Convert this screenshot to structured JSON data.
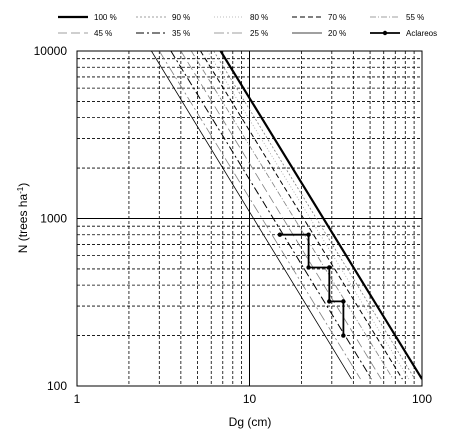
{
  "chart_data": {
    "type": "line",
    "title": "",
    "xlabel": "Dg (cm)",
    "ylabel_main": "N (trees ha",
    "ylabel_sup": "-1",
    "ylabel_close": ")",
    "xscale": "log",
    "yscale": "log",
    "xlim": [
      1,
      100
    ],
    "ylim": [
      100,
      10000
    ],
    "x_ticks": [
      1,
      10,
      100
    ],
    "x_tick_labels": [
      "1",
      "10",
      "100"
    ],
    "y_ticks": [
      100,
      1000,
      10000
    ],
    "y_tick_labels": [
      "100",
      "1000",
      "10000"
    ],
    "grid": true,
    "grid_style": "dashed minor, solid major",
    "legend_position": "top",
    "series": [
      {
        "name": "100 %",
        "x": [
          6.8,
          100
        ],
        "y": [
          10000,
          110
        ],
        "style": "solid-thick",
        "color": "#000000"
      },
      {
        "name": "90 %",
        "x": [
          6.2,
          91
        ],
        "y": [
          10000,
          110
        ],
        "style": "dashed-fine",
        "color": "#808080"
      },
      {
        "name": "80 %",
        "x": [
          5.7,
          84
        ],
        "y": [
          10000,
          110
        ],
        "style": "dotted",
        "color": "#a6a6a6"
      },
      {
        "name": "70 %",
        "x": [
          5.2,
          77
        ],
        "y": [
          10000,
          110
        ],
        "style": "dashed",
        "color": "#000000"
      },
      {
        "name": "55 %",
        "x": [
          4.6,
          68
        ],
        "y": [
          10000,
          110
        ],
        "style": "dash-dot-fine",
        "color": "#808080"
      },
      {
        "name": "45 %",
        "x": [
          4.0,
          58
        ],
        "y": [
          10000,
          110
        ],
        "style": "long-dash",
        "color": "#808080"
      },
      {
        "name": "35 %",
        "x": [
          3.5,
          51
        ],
        "y": [
          10000,
          110
        ],
        "style": "dash-dot",
        "color": "#000000"
      },
      {
        "name": "25 %",
        "x": [
          3.0,
          44
        ],
        "y": [
          10000,
          110
        ],
        "style": "dash-dot-gray",
        "color": "#808080"
      },
      {
        "name": "20 %",
        "x": [
          2.7,
          39
        ],
        "y": [
          10000,
          110
        ],
        "style": "solid-thin",
        "color": "#000000"
      },
      {
        "name": "Aclareos",
        "x": [
          15,
          22,
          22,
          29,
          29,
          35,
          35
        ],
        "y": [
          800,
          800,
          510,
          510,
          320,
          320,
          200
        ],
        "style": "marker-line",
        "color": "#000000"
      }
    ]
  }
}
